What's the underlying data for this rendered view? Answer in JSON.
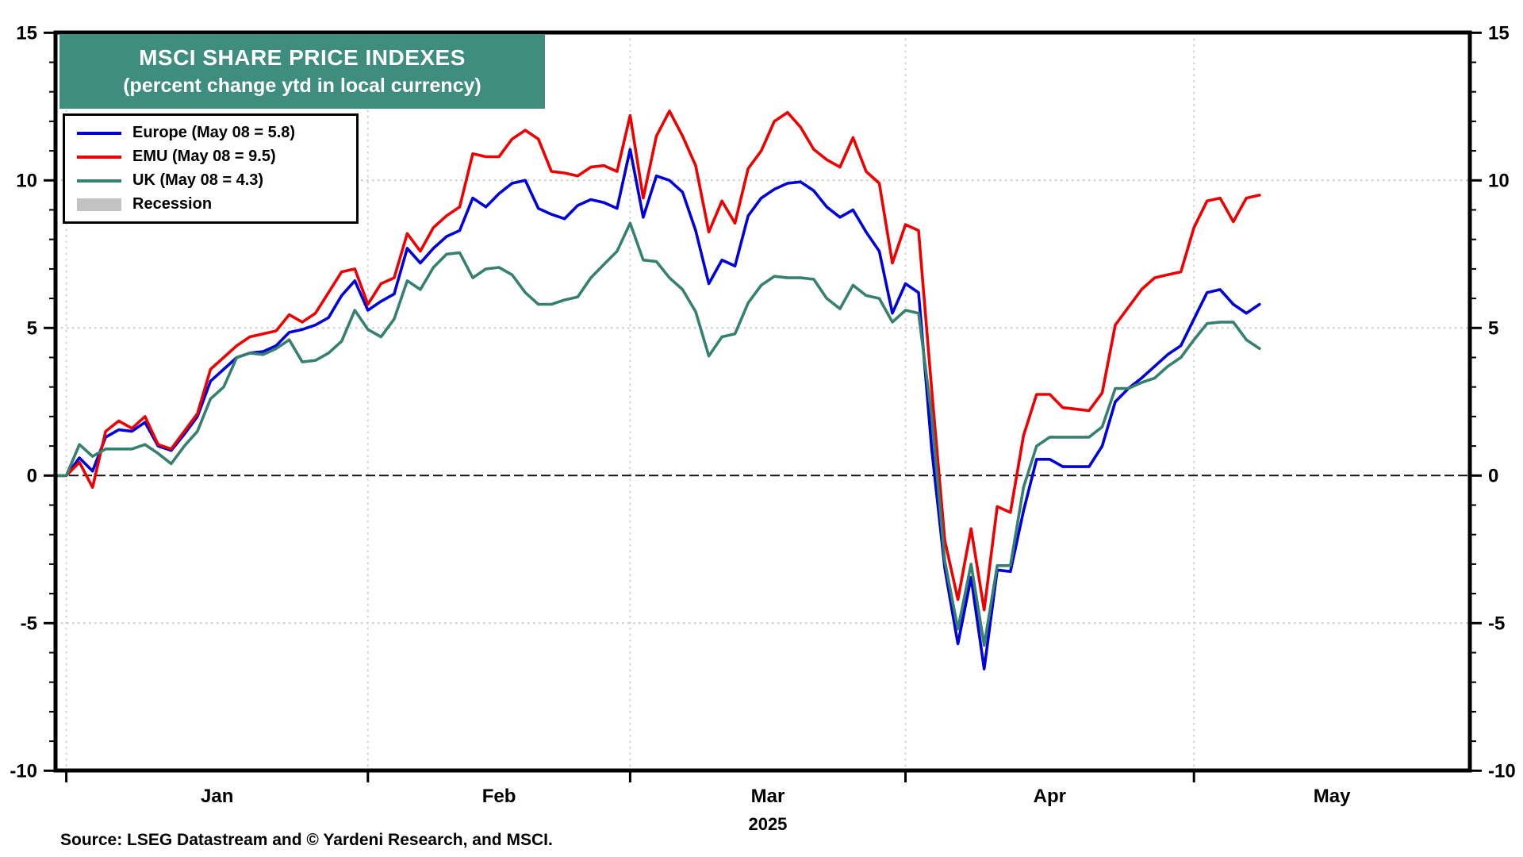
{
  "header": {
    "title": "MSCI SHARE PRICE INDEXES",
    "subtitle": "(percent change ytd in local currency)",
    "title_bg_color": "#3E8D7E"
  },
  "source_line": "Source: LSEG Datastream and © Yardeni Research, and MSCI.",
  "chart_data": {
    "type": "line",
    "title": "MSCI SHARE PRICE INDEXES",
    "subtitle": "(percent change ytd in local currency)",
    "ylabel": "",
    "xlabel": "",
    "ylim": [
      -10,
      15
    ],
    "ytick_major": [
      -10,
      -5,
      0,
      5,
      10,
      15
    ],
    "grid_y": [
      -5,
      5,
      10
    ],
    "zero_line": 0,
    "grid": "dotted",
    "legend_position": "top-left",
    "year_label": "2025",
    "month_labels": [
      "Jan",
      "Feb",
      "Mar",
      "Apr",
      "May"
    ],
    "month_tick_indices": [
      1,
      24,
      44,
      65,
      87
    ],
    "x_dates": [
      "Dec 31",
      "Jan 1",
      "Jan 2",
      "Jan 3",
      "Jan 6",
      "Jan 7",
      "Jan 8",
      "Jan 9",
      "Jan 10",
      "Jan 13",
      "Jan 14",
      "Jan 15",
      "Jan 16",
      "Jan 17",
      "Jan 20",
      "Jan 21",
      "Jan 22",
      "Jan 23",
      "Jan 24",
      "Jan 27",
      "Jan 28",
      "Jan 29",
      "Jan 30",
      "Jan 31",
      "Feb 3",
      "Feb 4",
      "Feb 5",
      "Feb 6",
      "Feb 7",
      "Feb 10",
      "Feb 11",
      "Feb 12",
      "Feb 13",
      "Feb 14",
      "Feb 17",
      "Feb 18",
      "Feb 19",
      "Feb 20",
      "Feb 21",
      "Feb 24",
      "Feb 25",
      "Feb 26",
      "Feb 27",
      "Feb 28",
      "Mar 3",
      "Mar 4",
      "Mar 5",
      "Mar 6",
      "Mar 7",
      "Mar 10",
      "Mar 11",
      "Mar 12",
      "Mar 13",
      "Mar 14",
      "Mar 17",
      "Mar 18",
      "Mar 19",
      "Mar 20",
      "Mar 21",
      "Mar 24",
      "Mar 25",
      "Mar 26",
      "Mar 27",
      "Mar 28",
      "Mar 31",
      "Apr 1",
      "Apr 2",
      "Apr 3",
      "Apr 4",
      "Apr 7",
      "Apr 8",
      "Apr 9",
      "Apr 10",
      "Apr 11",
      "Apr 14",
      "Apr 15",
      "Apr 16",
      "Apr 17",
      "Apr 18",
      "Apr 21",
      "Apr 22",
      "Apr 23",
      "Apr 24",
      "Apr 25",
      "Apr 28",
      "Apr 29",
      "Apr 30",
      "May 1",
      "May 2",
      "May 5",
      "May 6",
      "May 7",
      "May 8"
    ],
    "series": [
      {
        "name": "Europe",
        "legend": "Europe (May 08 = 5.8)",
        "color": "#0000D8",
        "final_value": 5.8,
        "values": [
          0,
          0,
          0.6,
          0.15,
          1.3,
          1.55,
          1.5,
          1.8,
          1.0,
          0.85,
          1.4,
          2.0,
          3.2,
          3.6,
          4.0,
          4.15,
          4.2,
          4.4,
          4.85,
          4.95,
          5.1,
          5.35,
          6.1,
          6.6,
          5.6,
          5.9,
          6.15,
          7.7,
          7.2,
          7.7,
          8.1,
          8.3,
          9.4,
          9.1,
          9.55,
          9.9,
          10.0,
          9.05,
          8.85,
          8.7,
          9.15,
          9.35,
          9.25,
          9.05,
          11.05,
          8.75,
          10.15,
          10.0,
          9.6,
          8.3,
          6.5,
          7.3,
          7.1,
          8.8,
          9.4,
          9.7,
          9.9,
          9.95,
          9.65,
          9.1,
          8.75,
          9.0,
          8.25,
          7.6,
          5.5,
          6.5,
          6.2,
          0.9,
          -3.15,
          -5.7,
          -3.45,
          -6.55,
          -3.2,
          -3.25,
          -1.2,
          0.55,
          0.55,
          0.3,
          0.3,
          0.3,
          1.0,
          2.5,
          2.95,
          3.3,
          3.7,
          4.1,
          4.4,
          5.3,
          6.2,
          6.3,
          5.8,
          5.5,
          5.8
        ]
      },
      {
        "name": "EMU",
        "legend": "EMU (May 08 = 9.5)",
        "color": "#EE0000",
        "final_value": 9.5,
        "values": [
          0,
          0,
          0.45,
          -0.4,
          1.5,
          1.85,
          1.6,
          2.0,
          1.05,
          0.9,
          1.5,
          2.1,
          3.6,
          4.0,
          4.4,
          4.7,
          4.8,
          4.9,
          5.45,
          5.2,
          5.5,
          6.2,
          6.9,
          7.0,
          5.8,
          6.5,
          6.7,
          8.2,
          7.6,
          8.4,
          8.8,
          9.1,
          10.9,
          10.8,
          10.8,
          11.4,
          11.7,
          11.4,
          10.3,
          10.25,
          10.15,
          10.45,
          10.5,
          10.3,
          12.2,
          9.4,
          11.5,
          12.35,
          11.5,
          10.5,
          8.25,
          9.3,
          8.55,
          10.4,
          11.0,
          12.0,
          12.3,
          11.8,
          11.05,
          10.7,
          10.45,
          11.45,
          10.3,
          9.9,
          7.2,
          8.5,
          8.3,
          2.9,
          -2.2,
          -4.2,
          -1.8,
          -4.55,
          -1.05,
          -1.25,
          1.35,
          2.75,
          2.75,
          2.3,
          2.25,
          2.2,
          2.8,
          5.1,
          5.7,
          6.3,
          6.7,
          6.8,
          6.9,
          8.4,
          9.3,
          9.4,
          8.6,
          9.4,
          9.5
        ]
      },
      {
        "name": "UK",
        "legend": "UK (May 08 = 4.3)",
        "color": "#35806F",
        "final_value": 4.3,
        "values": [
          0,
          0,
          1.05,
          0.65,
          0.9,
          0.9,
          0.9,
          1.05,
          0.75,
          0.4,
          1.0,
          1.5,
          2.6,
          3.0,
          4.0,
          4.15,
          4.1,
          4.3,
          4.6,
          3.85,
          3.9,
          4.15,
          4.55,
          5.6,
          4.95,
          4.7,
          5.3,
          6.6,
          6.3,
          7.05,
          7.5,
          7.55,
          6.7,
          7.0,
          7.05,
          6.8,
          6.2,
          5.8,
          5.8,
          5.95,
          6.05,
          6.7,
          7.15,
          7.6,
          8.55,
          7.3,
          7.25,
          6.7,
          6.3,
          5.55,
          4.05,
          4.7,
          4.8,
          5.85,
          6.45,
          6.75,
          6.7,
          6.7,
          6.65,
          6.0,
          5.65,
          6.45,
          6.1,
          6.0,
          5.2,
          5.6,
          5.5,
          2.0,
          -2.9,
          -5.2,
          -3.0,
          -5.75,
          -3.05,
          -3.05,
          -0.4,
          1.0,
          1.3,
          1.3,
          1.3,
          1.3,
          1.65,
          2.95,
          2.95,
          3.15,
          3.3,
          3.7,
          4.0,
          4.6,
          5.15,
          5.2,
          5.2,
          4.6,
          4.3
        ]
      }
    ],
    "recession_label": "Recession",
    "recession_color": "#C2C2C2",
    "colors": {
      "grid": "#C9C9C9",
      "frame": "#000000",
      "zero_line": "#111111"
    }
  }
}
